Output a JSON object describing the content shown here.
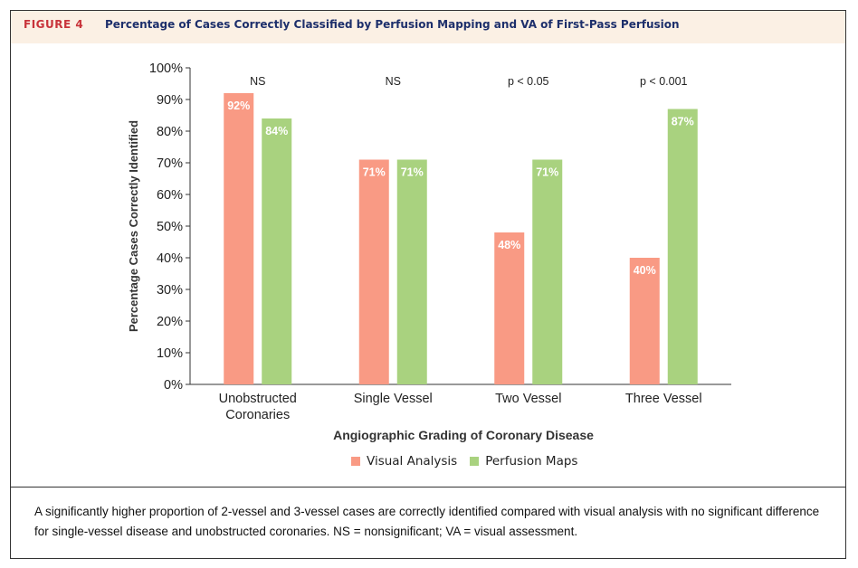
{
  "figure": {
    "label": "FIGURE 4",
    "title": "Percentage of Cases Correctly Classified by Perfusion Mapping and VA of First-Pass Perfusion",
    "caption": "A significantly higher proportion of 2-vessel and 3-vessel cases are correctly identified compared with visual analysis with no significant difference for single-vessel disease and unobstructed coronaries. NS = nonsignificant; VA = visual assessment."
  },
  "colors": {
    "visual": "#f99a84",
    "perfusion": "#a9d27f",
    "label_text": "#ffffff",
    "header_bg": "#fbf0e4",
    "figure_label": "#c8333a",
    "title_text": "#1d2f6b"
  },
  "chart_data": {
    "type": "bar",
    "categories": [
      "Unobstructed\nCoronaries",
      "Single Vessel",
      "Two Vessel",
      "Three Vessel"
    ],
    "series": [
      {
        "name": "Visual Analysis",
        "values": [
          92,
          71,
          48,
          40
        ],
        "labels": [
          "92%",
          "71%",
          "48%",
          "40%"
        ]
      },
      {
        "name": "Perfusion Maps",
        "values": [
          84,
          71,
          71,
          87
        ],
        "labels": [
          "84%",
          "71%",
          "71%",
          "87%"
        ]
      }
    ],
    "significance": [
      "NS",
      "NS",
      "p < 0.05",
      "p < 0.001"
    ],
    "xlabel": "Angiographic Grading of Coronary Disease",
    "ylabel": "Percentage Cases Correctly Identified",
    "ylim": [
      0,
      100
    ],
    "yticks": [
      "0%",
      "10%",
      "20%",
      "30%",
      "40%",
      "50%",
      "60%",
      "70%",
      "80%",
      "90%",
      "100%"
    ],
    "legend_position": "bottom-center",
    "grid": false
  }
}
